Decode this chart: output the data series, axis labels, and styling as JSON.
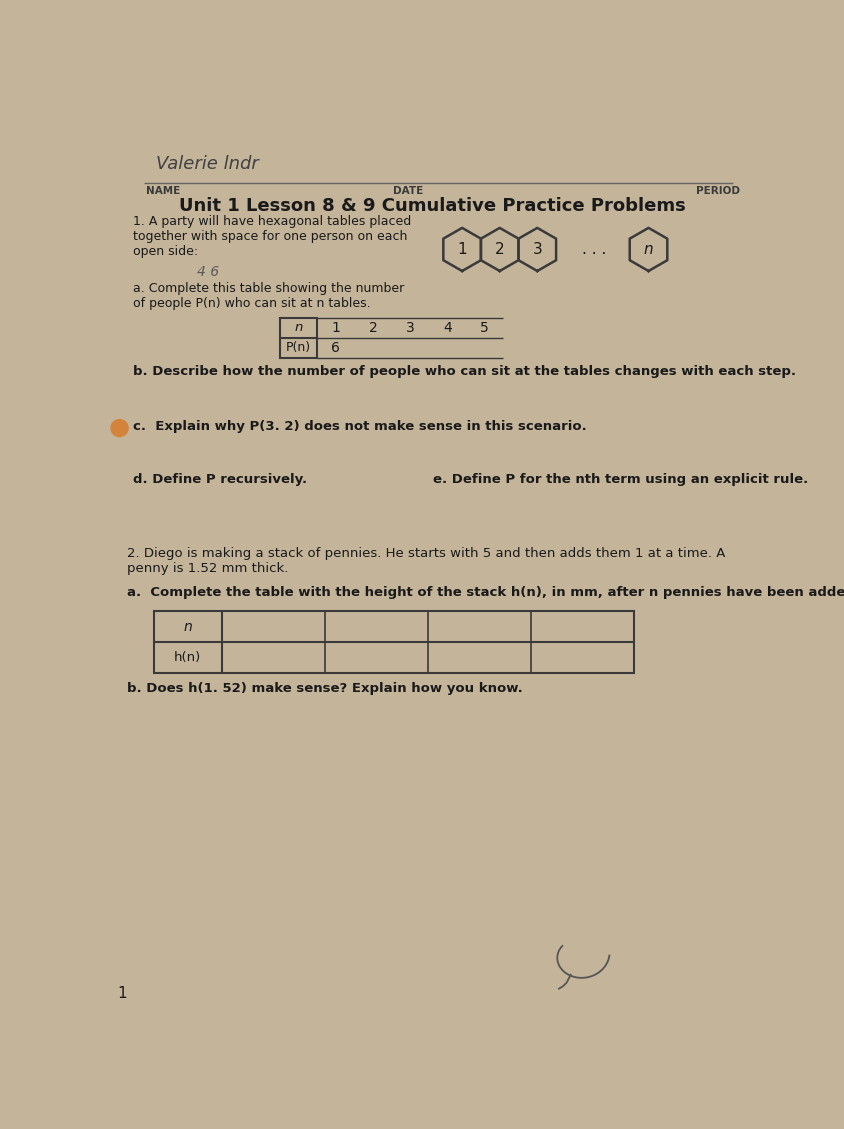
{
  "background_color": "#c4b49a",
  "title": "Unit 1 Lesson 8 & 9 Cumulative Practice Problems",
  "title_fontsize": 13.0,
  "name_label": "NAME",
  "date_label": "DATE",
  "period_label": "PERIOD",
  "handwriting_text": "Valerie lndr",
  "handwriting_text2": "4 6",
  "q1_text": "1. A party will have hexagonal tables placed\ntogether with space for one person on each\nopen side:",
  "q1a_text": "a. Complete this table showing the number\nof people P(n) who can sit at n tables.",
  "table1_headers": [
    "n",
    "1",
    "2",
    "3",
    "4",
    "5"
  ],
  "table1_row2_label": "P(n)",
  "table1_row2_value": "6",
  "q1b_text": "b. Describe how the number of people who can sit at the tables changes with each step.",
  "q1c_text": "c.  Explain why P(3. 2) does not make sense in this scenario.",
  "q1d_text": "d. Define P recursively.",
  "q1e_text": "e. Define P for the nth term using an explicit rule.",
  "q2_text": "2. Diego is making a stack of pennies. He starts with 5 and then adds them 1 at a time. A\npenny is 1.52 mm thick.",
  "q2a_text": "a.  Complete the table with the height of the stack h(n), in mm, after n pennies have been added.",
  "table2_row1_label": "n",
  "table2_row2_label": "h(n)",
  "q2b_text": "b. Does h(1. 52) make sense? Explain how you know.",
  "page_number": "1",
  "text_color": "#2a2a2a",
  "table_border_color": "#3a3a3a",
  "line_color": "#3a3a3a",
  "orange_dot_color": "#d4843a",
  "hex_color": "#3a3a3a",
  "header_line_color": "#555555",
  "name_line_color": "#666666"
}
